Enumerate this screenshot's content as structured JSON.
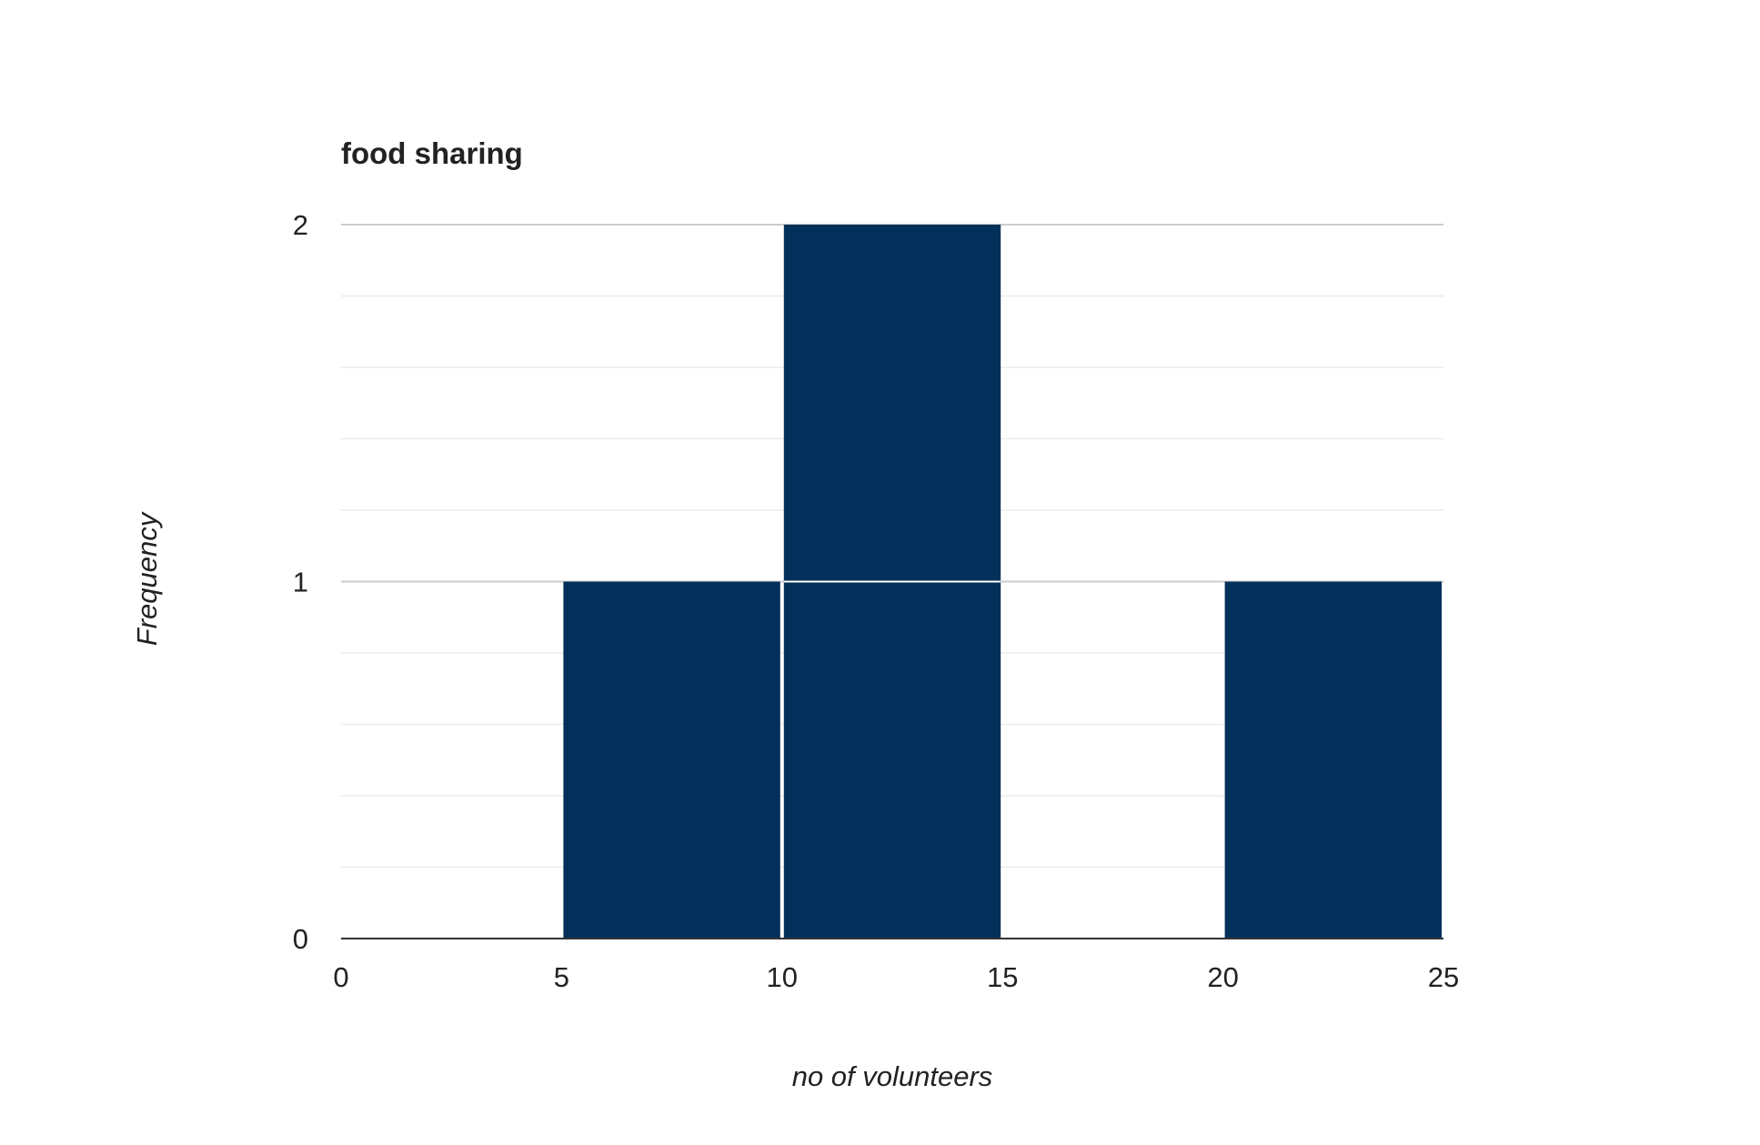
{
  "chart_data": {
    "type": "bar",
    "subtype": "histogram",
    "title": "food sharing",
    "xlabel": "no of volunteers",
    "ylabel": "Frequency",
    "bins": [
      {
        "start": 0,
        "end": 5,
        "value": 0
      },
      {
        "start": 5,
        "end": 10,
        "value": 1
      },
      {
        "start": 10,
        "end": 15,
        "value": 2
      },
      {
        "start": 15,
        "end": 20,
        "value": 0
      },
      {
        "start": 20,
        "end": 25,
        "value": 1
      }
    ],
    "xlim": [
      0,
      25
    ],
    "ylim": [
      0,
      2
    ],
    "x_ticks": [
      "0",
      "5",
      "10",
      "15",
      "20",
      "25"
    ],
    "y_ticks": [
      "0",
      "1",
      "2"
    ],
    "grid": true,
    "legend": "none",
    "colors": {
      "bar": "#03305a",
      "major_grid": "#cccccc",
      "minor_grid": "#ebebeb",
      "baseline": "#333333",
      "text": "#222222"
    }
  }
}
